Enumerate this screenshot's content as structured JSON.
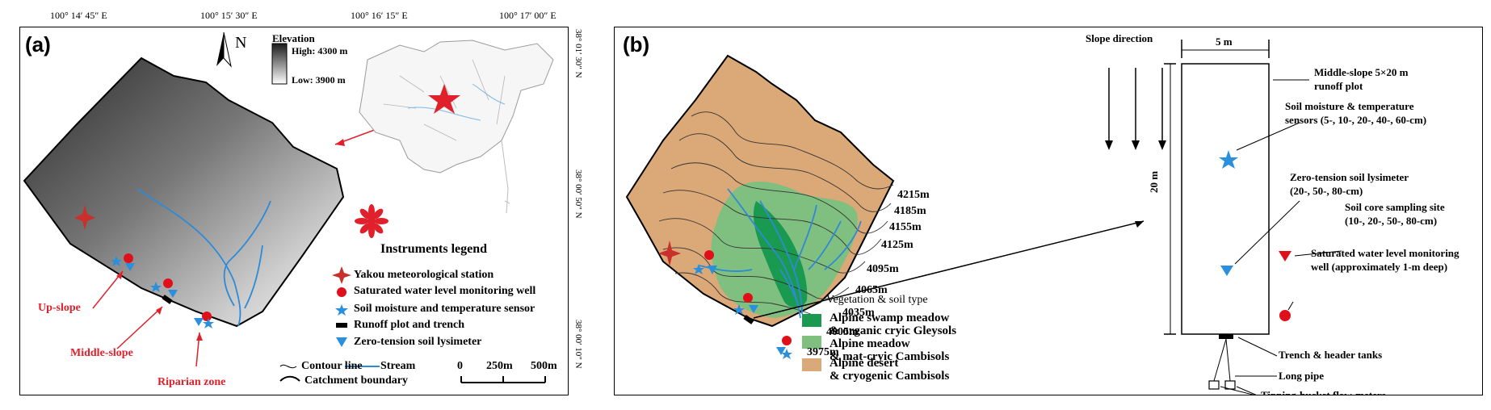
{
  "coords_top": [
    "100° 14′ 45″ E",
    "100° 15′ 30″ E",
    "100° 16′ 15″ E",
    "100° 17′ 00″ E"
  ],
  "coords_right": [
    "38° 01′ 30″ N",
    "38° 00′ 50″ N",
    "38° 00′ 10″ N"
  ],
  "panel_a": {
    "label": "(a)",
    "north": "N",
    "elevation": {
      "title": "Elevation",
      "high": "High: 4300 m",
      "low": "Low: 3900 m"
    },
    "legend_title": "Instruments legend",
    "legend": [
      "Yakou meteorological station",
      "Saturated water level monitoring well",
      "Soil moisture and temperature sensor",
      "Runoff plot and trench",
      "Zero-tension soil lysimeter"
    ],
    "bottom_legend": {
      "contour": "Contour line",
      "stream": "Stream",
      "boundary": "Catchment boundary"
    },
    "scale": [
      "0",
      "250m",
      "500m"
    ],
    "sites": [
      "Up-slope",
      "Middle-slope",
      "Riparian zone"
    ]
  },
  "panel_b": {
    "label": "(b)",
    "contours": [
      "4215m",
      "4185m",
      "4155m",
      "4125m",
      "4095m",
      "4065m",
      "4035m",
      "4005m",
      "3975m"
    ],
    "veg_title": "Vegetation & soil type",
    "veg": [
      {
        "line1": "Alpine swamp meadow",
        "line2": "& organic cryic Gleysols",
        "color": "#1a9a50"
      },
      {
        "line1": "Alpine meadow",
        "line2": "& mat-cryic Cambisols",
        "color": "#7fbf7f"
      },
      {
        "line1": "Alpine desert",
        "line2": "& cryogenic Cambisols",
        "color": "#dba877"
      }
    ],
    "slope_direction": "Slope direction",
    "width_label": "5 m",
    "height_label": "20 m",
    "plot_title_1": "Middle-slope 5×20 m",
    "plot_title_2": "runoff plot",
    "sensor_1": "Soil moisture & temperature",
    "sensor_2": "sensors (5-, 10-, 20-, 40-, 60-cm)",
    "lysimeter_1": "Zero-tension soil lysimeter",
    "lysimeter_2": "(20-, 50-, 80-cm)",
    "core_1": "Soil core sampling site",
    "core_2": "(10-, 20-, 50-, 80-cm)",
    "well_1": "Saturated water level monitoring",
    "well_2": "well (approximately 1-m deep)",
    "trench": "Trench & header tanks",
    "pipe": "Long pipe",
    "tipping": "Tipping-bucket flow-meters"
  }
}
